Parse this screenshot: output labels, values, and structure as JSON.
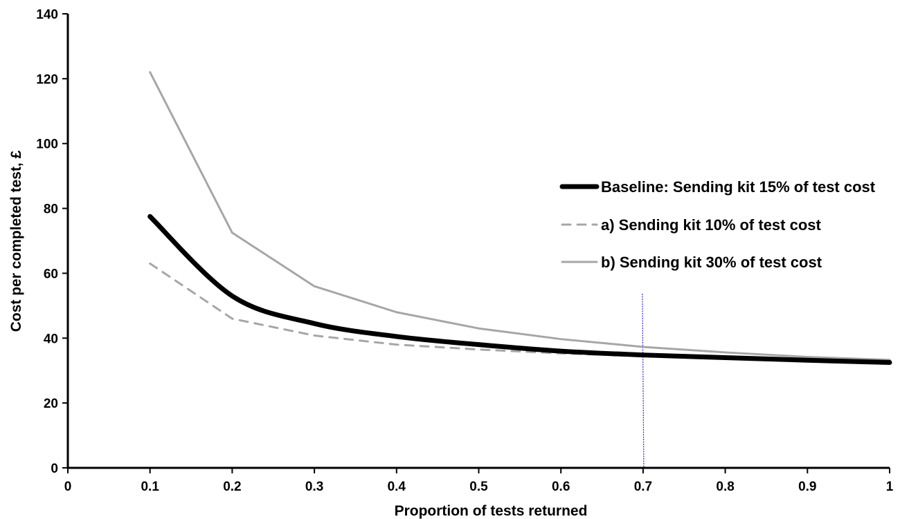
{
  "chart_data": {
    "type": "line",
    "xlabel": "Proportion of tests returned",
    "ylabel": "Cost per completed test, £",
    "xlim": [
      0,
      1
    ],
    "ylim": [
      0,
      140
    ],
    "x_ticks": [
      "0",
      "0.1",
      "0.2",
      "0.3",
      "0.4",
      "0.5",
      "0.6",
      "0.7",
      "0.8",
      "0.9",
      "1"
    ],
    "y_ticks": [
      "0",
      "20",
      "40",
      "60",
      "80",
      "100",
      "120",
      "140"
    ],
    "grid": false,
    "legend_position": "right",
    "reference_line": {
      "x": 0.7,
      "color": "#2b2bcc",
      "style": "dotted"
    },
    "x": [
      0.1,
      0.2,
      0.3,
      0.4,
      0.5,
      0.6,
      0.7,
      0.8,
      0.9,
      1.0
    ],
    "series": [
      {
        "name": "Baseline: Sending kit 15% of test cost",
        "color": "#000000",
        "style": "solid-thick",
        "values": [
          77.5,
          53,
          44.5,
          40.5,
          38,
          36,
          34.8,
          34,
          33.2,
          32.5
        ]
      },
      {
        "name": "a) Sending kit 10% of test cost",
        "color": "#a6a6a6",
        "style": "dashed",
        "values": [
          63,
          46,
          40.8,
          38,
          36.5,
          35.3,
          34.5,
          33.8,
          33.2,
          32.8
        ]
      },
      {
        "name": "b) Sending kit 30% of test cost",
        "color": "#a6a6a6",
        "style": "solid",
        "values": [
          122,
          72.5,
          56,
          48,
          43,
          39.7,
          37.3,
          35.6,
          34.2,
          33.3
        ]
      }
    ]
  }
}
